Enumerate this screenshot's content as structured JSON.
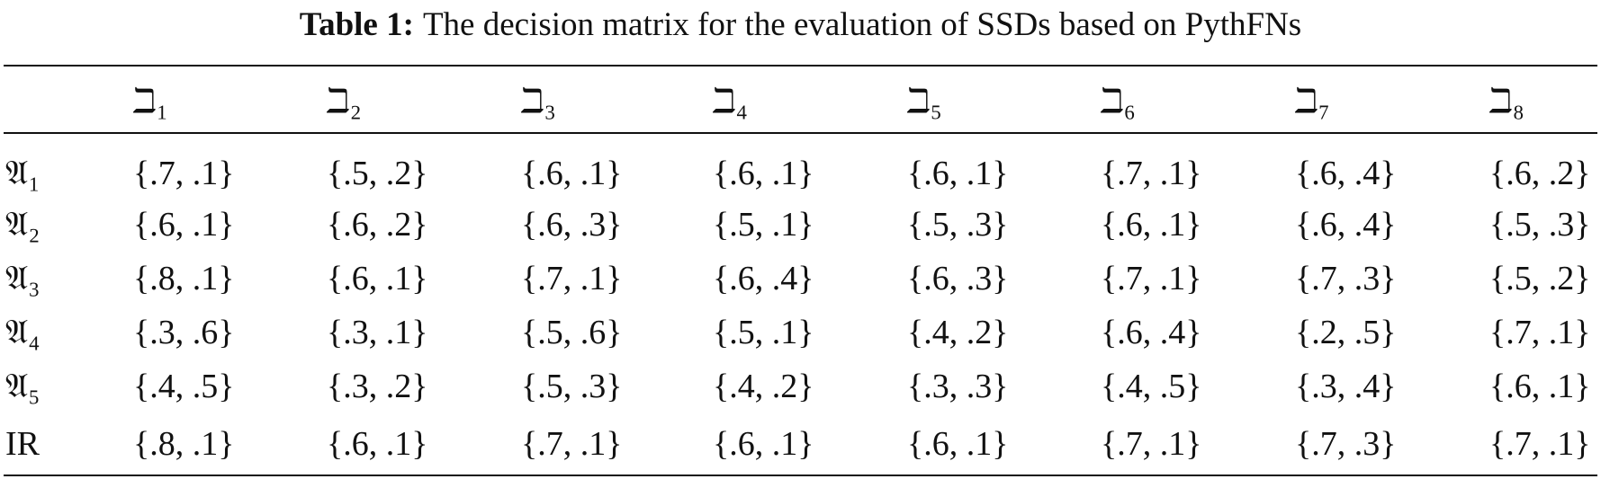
{
  "table": {
    "title": {
      "label": "Table 1:",
      "text": "The decision matrix for the evaluation of SSDs based on PythFNs"
    },
    "columns": [
      "ℶ₁",
      "ℶ₂",
      "ℶ₃",
      "ℶ₄",
      "ℶ₅",
      "ℶ₆",
      "ℶ₇",
      "ℶ₈"
    ],
    "row_labels": [
      "𝔄₁",
      "𝔄₂",
      "𝔄₃",
      "𝔄₄",
      "𝔄₅",
      "IR"
    ],
    "rows": [
      [
        "{.7, .1}",
        "{.5, .2}",
        "{.6, .1}",
        "{.6, .1}",
        "{.6, .1}",
        "{.7, .1}",
        "{.6, .4}",
        "{.6, .2}"
      ],
      [
        "{.6, .1}",
        "{.6, .2}",
        "{.6, .3}",
        "{.5, .1}",
        "{.5, .3}",
        "{.6, .1}",
        "{.6, .4}",
        "{.5, .3}"
      ],
      [
        "{.8, .1}",
        "{.6, .1}",
        "{.7, .1}",
        "{.6, .4}",
        "{.6, .3}",
        "{.7, .1}",
        "{.7, .3}",
        "{.5, .2}"
      ],
      [
        "{.3, .6}",
        "{.3, .1}",
        "{.5, .6}",
        "{.5, .1}",
        "{.4, .2}",
        "{.6, .4}",
        "{.2, .5}",
        "{.7, .1}"
      ],
      [
        "{.4, .5}",
        "{.3, .2}",
        "{.5, .3}",
        "{.4, .2}",
        "{.3, .3}",
        "{.4, .5}",
        "{.3, .4}",
        "{.6, .1}"
      ],
      [
        "{.8, .1}",
        "{.6, .1}",
        "{.7, .1}",
        "{.6, .1}",
        "{.6, .1}",
        "{.7, .1}",
        "{.7, .3}",
        "{.7, .1}"
      ]
    ]
  }
}
